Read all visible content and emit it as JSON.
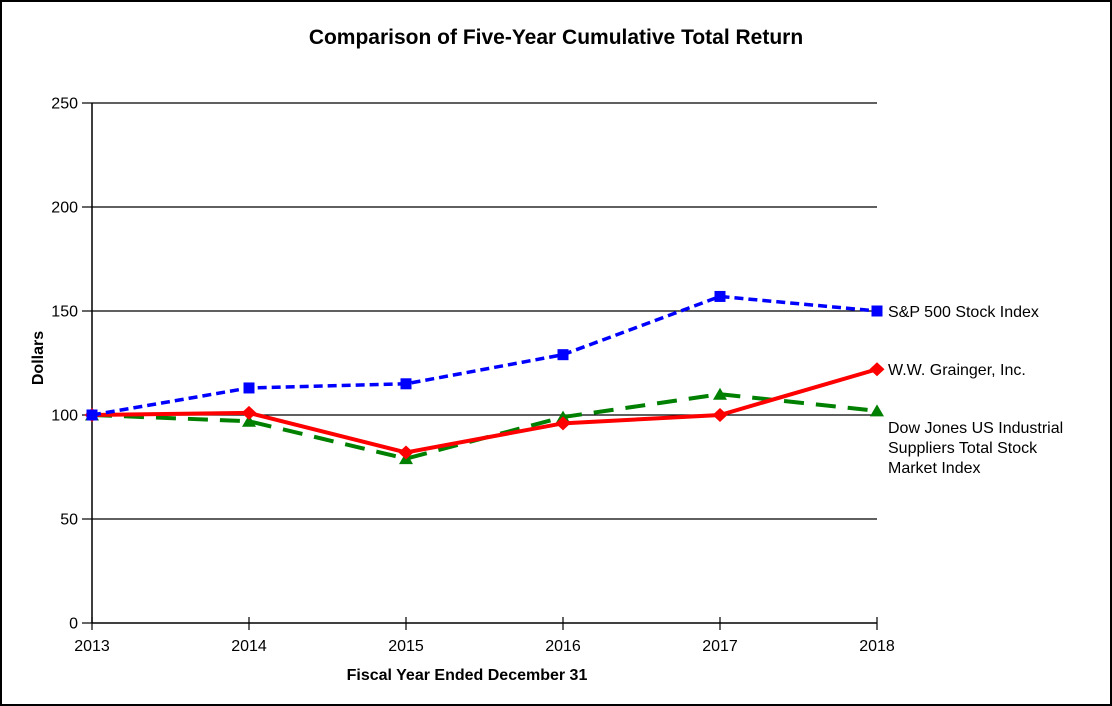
{
  "chart_data": {
    "type": "line",
    "title": "Comparison of Five-Year Cumulative Total Return",
    "xlabel": "Fiscal Year Ended December 31",
    "ylabel": "Dollars",
    "categories": [
      "2013",
      "2014",
      "2015",
      "2016",
      "2017",
      "2018"
    ],
    "y_ticks": [
      0,
      50,
      100,
      150,
      200,
      250
    ],
    "ylim": [
      0,
      250
    ],
    "grid": "horizontal-black-lines",
    "legend_position": "right-of-plot-aligned-to-line-endpoints",
    "background": "#ffffff",
    "series": [
      {
        "name": "S&P 500 Stock Index",
        "color": "#0000FF",
        "line_style": "dashed",
        "marker": "square",
        "values": [
          100,
          113,
          115,
          129,
          157,
          150
        ]
      },
      {
        "name": "W.W. Grainger, Inc.",
        "color": "#FF0000",
        "line_style": "solid",
        "marker": "diamond",
        "values": [
          100,
          101,
          82,
          96,
          100,
          122
        ]
      },
      {
        "name": "Dow Jones US Industrial Suppliers Total Stock Market Index",
        "color": "#008000",
        "line_style": "long-dash",
        "marker": "triangle",
        "values": [
          100,
          97,
          79,
          99,
          110,
          102
        ]
      }
    ]
  }
}
